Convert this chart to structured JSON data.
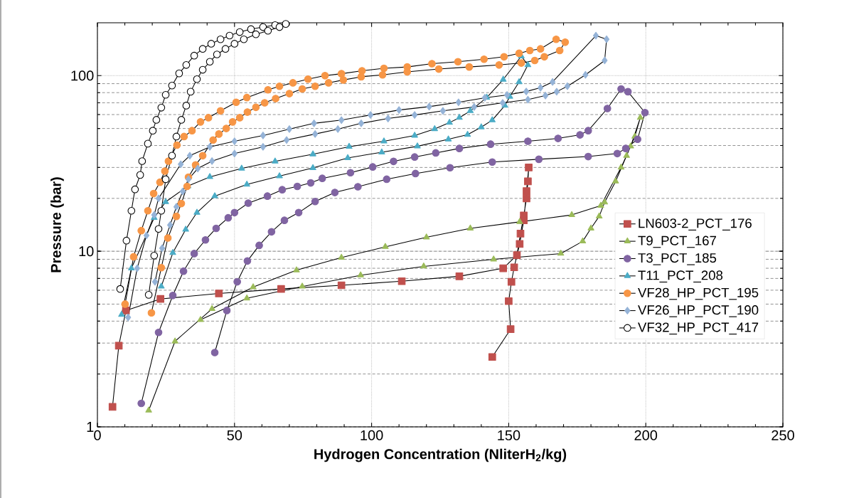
{
  "chart_data": {
    "type": "line",
    "xlabel": "Hydrogen Concentration (NliterH$_{2}$/kg)",
    "ylabel": "Pressure (bar)",
    "xlim": [
      0,
      250
    ],
    "xticks": [
      0,
      50,
      100,
      150,
      200,
      250
    ],
    "ylim": [
      1,
      200
    ],
    "yticks": [
      1,
      10,
      100
    ],
    "log": "y",
    "grid": true,
    "legend": "right",
    "line_style": "solid",
    "series": [
      {
        "name": "LN603-2_PCT_176",
        "color": "#c0504d",
        "marker": "square",
        "x": [
          5.5,
          7.8,
          10.4,
          23,
          44.3,
          67,
          89,
          111,
          132,
          148,
          153,
          154.3,
          155.5,
          156.5,
          157,
          157.3,
          156.5,
          155.5,
          154,
          152,
          151,
          150,
          150.7,
          144
        ],
        "values": [
          1.3,
          2.9,
          4.6,
          5.35,
          5.75,
          6.1,
          6.4,
          6.75,
          7.2,
          8.0,
          9.5,
          12.6,
          16,
          20,
          25,
          30,
          22,
          15,
          11,
          8.1,
          6.7,
          5.2,
          3.6,
          2.5
        ]
      },
      {
        "name": "T9_PCT_167",
        "color": "#9bbb59",
        "marker": "triangle",
        "x": [
          18.7,
          28.3,
          41.8,
          56.8,
          72.6,
          89,
          105,
          120,
          136,
          154,
          173,
          183.6,
          191,
          194.5,
          198,
          196,
          193,
          189,
          185,
          183,
          180,
          177,
          169,
          144.5,
          119,
          96,
          74.7,
          54.5,
          37.6
        ],
        "values": [
          1.24,
          3.07,
          4.7,
          6.25,
          7.8,
          9.2,
          10.6,
          12,
          13.5,
          14.7,
          16.1,
          18.2,
          30,
          39.6,
          57.6,
          45,
          35,
          25,
          19,
          15.8,
          13.5,
          11.4,
          9.7,
          9.0,
          8.2,
          7.3,
          6.3,
          5.4,
          4.07
        ]
      },
      {
        "name": "T3_PCT_185",
        "color": "#8064a2",
        "marker": "circle",
        "x": [
          16,
          22.3,
          27.5,
          31.4,
          35.3,
          39.4,
          43.3,
          47.7,
          50,
          55,
          62,
          67.4,
          72.9,
          77.8,
          82,
          92.3,
          100.4,
          108,
          115.7,
          123.4,
          132,
          143.4,
          157,
          168,
          176,
          179,
          186,
          191,
          193.5,
          199.7,
          197,
          192.7,
          189.6,
          179,
          161,
          144,
          128.6,
          116,
          105.5,
          95,
          86.6,
          79.4,
          73.4,
          68.2,
          63.5,
          59,
          54.7,
          51,
          47.2,
          42.8
        ],
        "values": [
          1.36,
          3.45,
          5.6,
          7.7,
          9.7,
          11.6,
          13.5,
          15.5,
          16.6,
          18.8,
          20.6,
          22.4,
          23.4,
          24.5,
          26,
          28,
          30.2,
          32.5,
          34.4,
          36.3,
          38.5,
          40.7,
          42.3,
          43.9,
          46,
          48.6,
          65,
          84,
          81,
          61.6,
          43.4,
          38.5,
          36,
          34.6,
          33.4,
          32.2,
          29.9,
          27.7,
          25.7,
          23.3,
          21.6,
          19.2,
          16.6,
          15,
          12.9,
          10.8,
          8.8,
          6.7,
          4.6,
          2.65
        ]
      },
      {
        "name": "T11_PCT_208",
        "color": "#4bacc6",
        "marker": "triangle",
        "x": [
          8.8,
          12.4,
          20.7,
          24.9,
          33,
          41,
          52.6,
          64.8,
          78.6,
          91.8,
          104.5,
          115.7,
          123,
          128.4,
          132,
          136,
          142,
          148,
          154.6,
          157,
          153.8,
          150.4,
          148.6,
          144,
          140,
          135,
          128,
          116.7,
          103.7,
          91.3,
          78.6,
          66.4,
          54.5,
          42.8,
          36.3,
          32.2,
          27.5,
          23.3
        ],
        "values": [
          4.35,
          8.0,
          15.5,
          19.1,
          23.5,
          26.5,
          29.6,
          32.5,
          35.7,
          39.4,
          42.3,
          45.6,
          49.7,
          54,
          57.6,
          63,
          75,
          95,
          129,
          115,
          92,
          76,
          67.5,
          55.8,
          50.9,
          46.1,
          43.4,
          39.6,
          36.6,
          34,
          29.8,
          26.8,
          24,
          20.6,
          16.6,
          13.3,
          9.8,
          6.3
        ]
      },
      {
        "name": "VF28_HP_PCT_195",
        "color": "#f79646",
        "marker": "circle",
        "x": [
          10.1,
          13.2,
          16,
          18.4,
          20.5,
          22.8,
          24.6,
          25.9,
          29,
          31.6,
          34.5,
          37.6,
          40.5,
          44.9,
          50.6,
          54.5,
          62.2,
          66.4,
          71.3,
          76.8,
          83,
          89,
          96.5,
          104.5,
          113,
          122,
          131.5,
          141,
          148.3,
          153.8,
          157.7,
          161.6,
          167.3,
          170.6,
          168.6,
          163,
          159.5,
          154.6,
          146.5,
          135.6,
          124.5,
          113,
          104,
          96.2,
          89.7,
          84.3,
          79.4,
          74.7,
          70,
          65,
          61,
          57.8,
          54.7,
          51.9,
          49.3,
          47,
          44.3,
          42.2,
          38.4,
          35.8,
          33.2,
          32.7,
          30.6,
          28.8,
          25.7,
          23.3,
          19.7
        ],
        "values": [
          5.0,
          9.3,
          13.1,
          17,
          21.3,
          24.7,
          28.6,
          32.6,
          40.2,
          45,
          48.6,
          54.5,
          57.6,
          63,
          70.5,
          75,
          83,
          87,
          91,
          95.5,
          100,
          102.5,
          106.5,
          110,
          112,
          117,
          120,
          124,
          128,
          134,
          139,
          142,
          161,
          155,
          139,
          128,
          122,
          118,
          115,
          112,
          109,
          105,
          101,
          98.5,
          94.5,
          91,
          87,
          84,
          79,
          74,
          70,
          66,
          62,
          57.6,
          54.5,
          50,
          46.5,
          43,
          35,
          31,
          26.4,
          23.4,
          18.7,
          15.8,
          11.9,
          8.06,
          4.46
        ]
      },
      {
        "name": "VF26_HP_PCT_190",
        "color": "#95b3d7",
        "marker": "diamond",
        "x": [
          11.2,
          14.5,
          17.9,
          20.7,
          22.3,
          30.4,
          33.7,
          41,
          50,
          60.4,
          70,
          79,
          89,
          99.6,
          110,
          121,
          131.7,
          141.3,
          149.4,
          156.4,
          161.6,
          166,
          181.8,
          185.7,
          185,
          178,
          171.4,
          167.5,
          163.4,
          157,
          147.8,
          137.4,
          126,
          115.7,
          106,
          96.2,
          87.7,
          79.4,
          69,
          60.4,
          50,
          41.8,
          36.6,
          33.2,
          31.1,
          28.8,
          26.5,
          23.6,
          21
        ],
        "values": [
          4.2,
          8.0,
          12.3,
          16.1,
          20,
          31.3,
          35,
          39.3,
          42.3,
          45.6,
          49.6,
          53.5,
          55.8,
          59.7,
          63.7,
          66.6,
          70.5,
          74.8,
          77.6,
          81.2,
          85.3,
          92,
          169,
          161,
          122,
          101,
          87,
          81,
          77,
          73,
          70,
          66.3,
          63,
          59.7,
          57,
          53.5,
          49.6,
          46.5,
          43,
          39.3,
          36,
          32.6,
          29.6,
          25.7,
          21.9,
          17.9,
          14.1,
          10.4,
          6.7
        ]
      },
      {
        "name": "VF32_HP_PCT_417",
        "color": "#000000",
        "marker": "circle",
        "x": [
          8.3,
          10.6,
          12.4,
          13.7,
          15.6,
          16.3,
          18.4,
          20.2,
          21.5,
          23.3,
          24.9,
          27.2,
          29.8,
          32.4,
          35.3,
          38.4,
          41.5,
          44.9,
          48.2,
          51.9,
          56,
          60.4,
          64.8,
          68.7,
          66.4,
          62.2,
          57.8,
          53.4,
          50,
          46.7,
          43.6,
          41,
          38.4,
          36.3,
          34,
          32.4,
          30.6,
          28.8,
          27.2,
          24.9,
          23.3,
          22.3,
          20.7,
          18.7
        ],
        "values": [
          6.1,
          11.5,
          17,
          22.5,
          27.2,
          32.6,
          41,
          48.6,
          56,
          65.7,
          77.8,
          87.8,
          103,
          115,
          130,
          142,
          152,
          161,
          169,
          177,
          184,
          189,
          194,
          197,
          189,
          180,
          172,
          161,
          152,
          142,
          132,
          120,
          108,
          95.5,
          81,
          67.5,
          56,
          45,
          35,
          25.7,
          17,
          13.4,
          9.45,
          5.65
        ]
      }
    ]
  }
}
